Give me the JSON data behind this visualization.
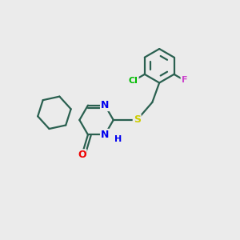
{
  "background_color": "#ebebeb",
  "bond_color": "#2a6050",
  "bond_width": 1.6,
  "atom_colors": {
    "N": "#0000ee",
    "O": "#ee0000",
    "S": "#cccc00",
    "Cl": "#00bb00",
    "F": "#cc44cc",
    "H": "#0000ee",
    "C": "#2a6050"
  },
  "ring_bond_color": "#2a6050"
}
